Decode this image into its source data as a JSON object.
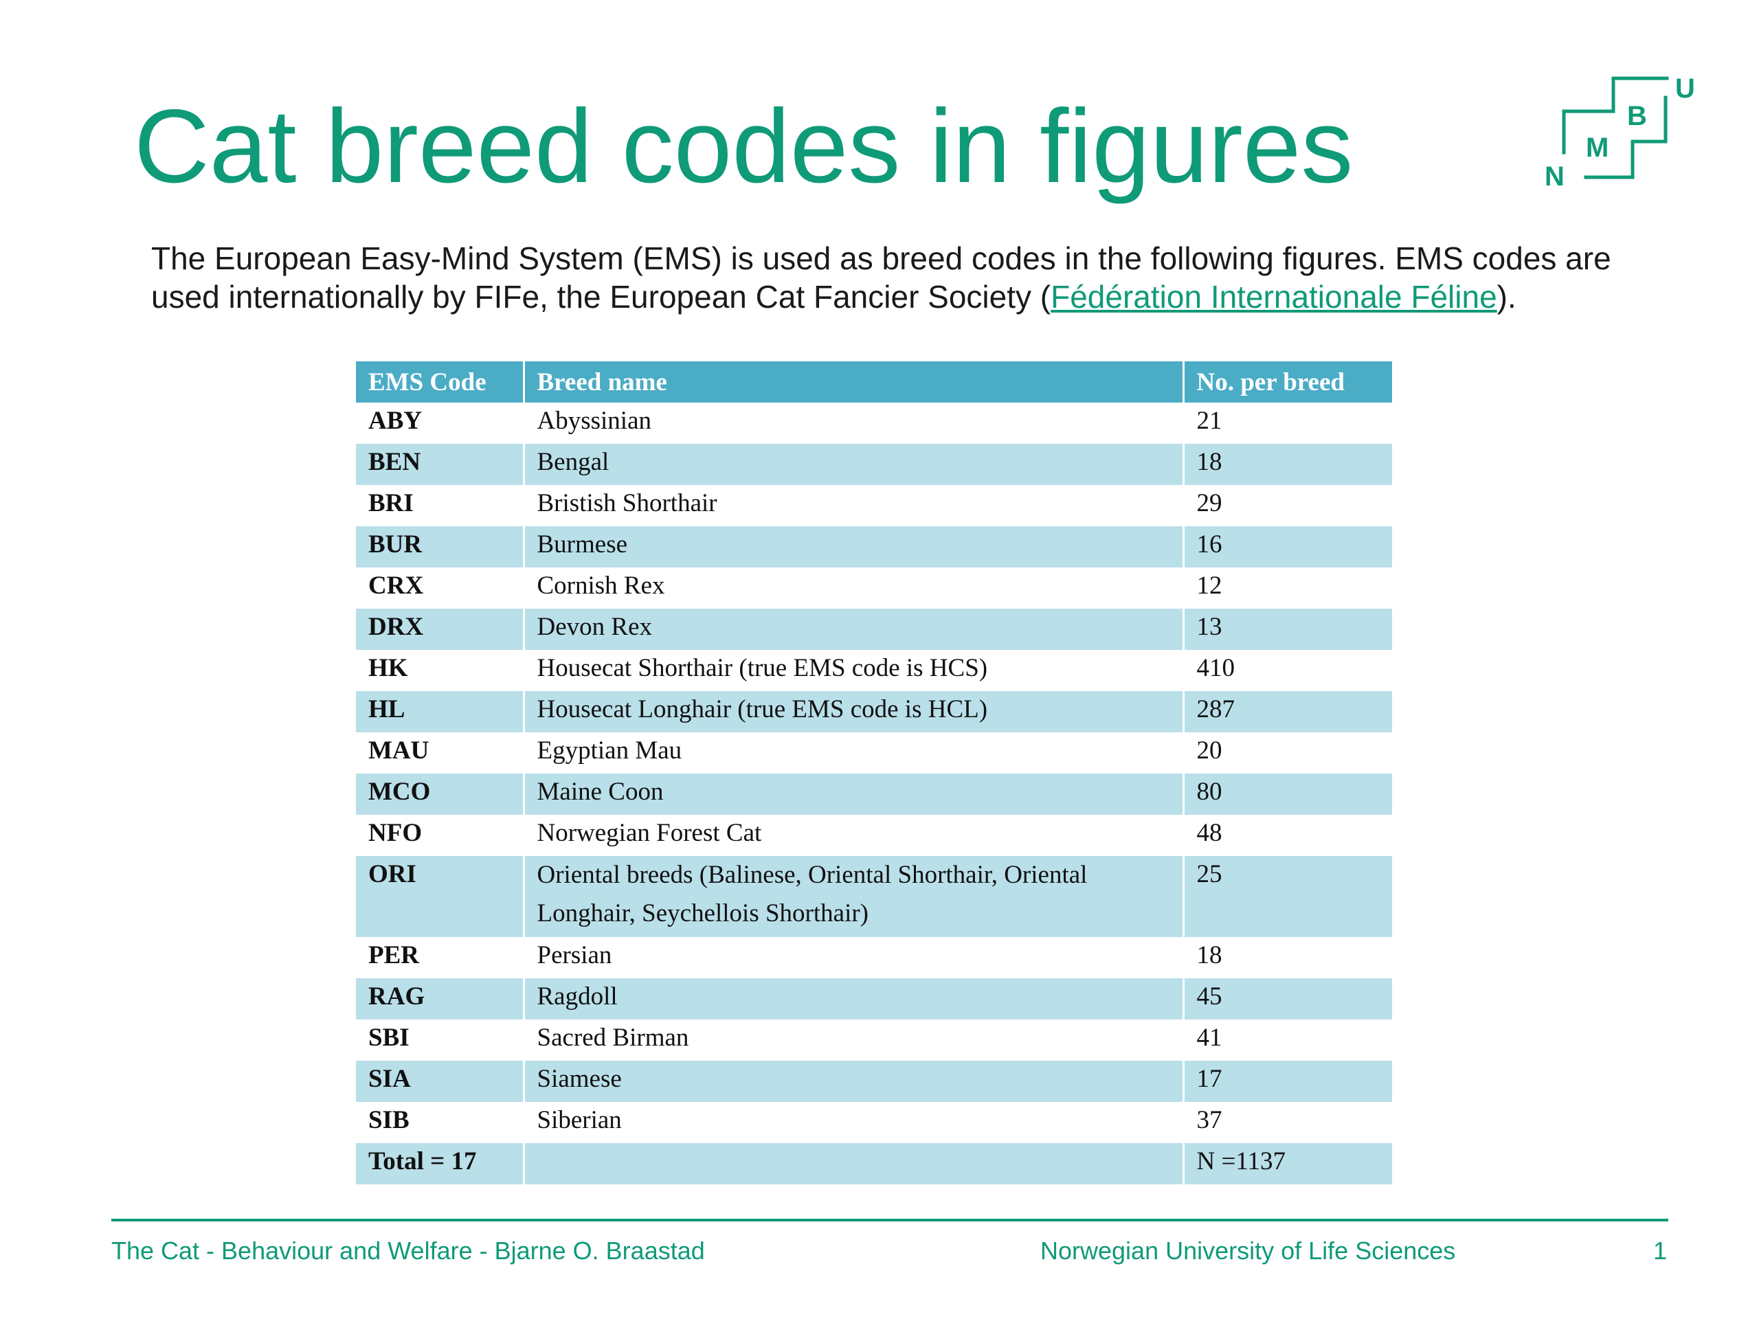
{
  "slide": {
    "title": "Cat breed codes in figures",
    "intro_text": "The European Easy-Mind System (EMS) is used as breed codes in the following figures. EMS codes are used internationally by FIFe, the European Cat Fancier Society (",
    "intro_link": "Fédération Internationale Féline",
    "intro_end": ")."
  },
  "logo": {
    "letters": [
      "N",
      "M",
      "B",
      "U"
    ],
    "color": "#0f9a78"
  },
  "table": {
    "headers": [
      "EMS Code",
      "Breed name",
      "No. per breed"
    ],
    "rows": [
      {
        "code": "ABY",
        "name": "Abyssinian",
        "count": "21"
      },
      {
        "code": "BEN",
        "name": "Bengal",
        "count": "18"
      },
      {
        "code": "BRI",
        "name": "Bristish Shorthair",
        "count": "29"
      },
      {
        "code": "BUR",
        "name": "Burmese",
        "count": "16"
      },
      {
        "code": "CRX",
        "name": "Cornish Rex",
        "count": "12"
      },
      {
        "code": "DRX",
        "name": "Devon Rex",
        "count": "13"
      },
      {
        "code": "HK",
        "name": "Housecat Shorthair (true EMS code is HCS)",
        "count": "410"
      },
      {
        "code": "HL",
        "name": "Housecat Longhair (true EMS code is HCL)",
        "count": "287"
      },
      {
        "code": "MAU",
        "name": "Egyptian Mau",
        "count": "20"
      },
      {
        "code": "MCO",
        "name": "Maine Coon",
        "count": "80"
      },
      {
        "code": "NFO",
        "name": "Norwegian Forest Cat",
        "count": "48"
      },
      {
        "code": "ORI",
        "name": "Oriental breeds (Balinese, Oriental Shorthair, Oriental Longhair, Seychellois Shorthair)",
        "count": "25"
      },
      {
        "code": "PER",
        "name": "Persian",
        "count": "18"
      },
      {
        "code": "RAG",
        "name": "Ragdoll",
        "count": "45"
      },
      {
        "code": "SBI",
        "name": "Sacred Birman",
        "count": "41"
      },
      {
        "code": "SIA",
        "name": "Siamese",
        "count": "17"
      },
      {
        "code": "SIB",
        "name": "Siberian",
        "count": "37"
      },
      {
        "code": "Total = 17",
        "name": "",
        "count": "N =1137"
      }
    ],
    "header_color": "#4bacc6",
    "band_color": "#b9dfe9"
  },
  "footer": {
    "left": "The Cat - Behaviour and Welfare - Bjarne O. Braastad",
    "center": "Norwegian University of Life Sciences",
    "page_number": "1"
  }
}
